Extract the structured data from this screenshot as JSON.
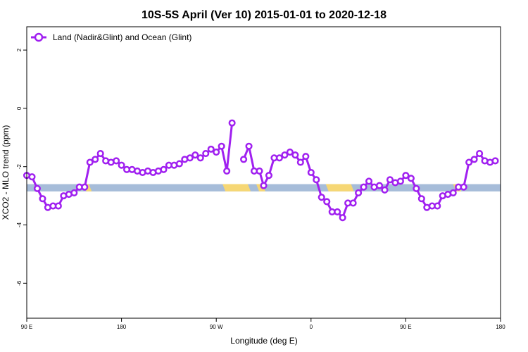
{
  "chart_data": {
    "type": "line",
    "title": "10S-5S April (Ver 10)   2015-01-01 to 2020-12-18",
    "xlabel": "Longitude (deg E)",
    "ylabel": "XCO2 - MLO trend (ppm)",
    "x_ticks": [
      {
        "value": 90,
        "label": "90 E"
      },
      {
        "value": 180,
        "label": "180"
      },
      {
        "value": 270,
        "label": "90 W"
      },
      {
        "value": 360,
        "label": "0"
      },
      {
        "value": 450,
        "label": "90 E"
      },
      {
        "value": 540,
        "label": "180"
      }
    ],
    "y_ticks": [
      {
        "value": 2,
        "label": "2"
      },
      {
        "value": 0,
        "label": "0"
      },
      {
        "value": -2,
        "label": "-2"
      },
      {
        "value": -4,
        "label": "-4"
      },
      {
        "value": -6,
        "label": "-6"
      }
    ],
    "xlim": [
      90,
      540
    ],
    "ylim": [
      -7.2,
      2.8
    ],
    "legend": {
      "position": "top-left"
    },
    "series": [
      {
        "name": "Land (Nadir&Glint) and Ocean (Glint)",
        "color": "#a020f0",
        "segments": [
          [
            [
              90,
              -2.3
            ],
            [
              95,
              -2.35
            ],
            [
              100,
              -2.75
            ],
            [
              105,
              -3.1
            ],
            [
              110,
              -3.4
            ],
            [
              115,
              -3.35
            ],
            [
              120,
              -3.35
            ],
            [
              125,
              -3.0
            ],
            [
              130,
              -2.95
            ],
            [
              135,
              -2.9
            ],
            [
              140,
              -2.7
            ],
            [
              145,
              -2.7
            ],
            [
              150,
              -1.85
            ],
            [
              155,
              -1.75
            ],
            [
              160,
              -1.55
            ],
            [
              165,
              -1.8
            ],
            [
              170,
              -1.85
            ],
            [
              175,
              -1.8
            ],
            [
              180,
              -1.95
            ],
            [
              185,
              -2.1
            ],
            [
              190,
              -2.1
            ],
            [
              195,
              -2.15
            ],
            [
              200,
              -2.2
            ],
            [
              205,
              -2.15
            ],
            [
              210,
              -2.2
            ],
            [
              215,
              -2.15
            ],
            [
              220,
              -2.1
            ],
            [
              225,
              -1.95
            ],
            [
              230,
              -1.95
            ],
            [
              235,
              -1.9
            ],
            [
              240,
              -1.75
            ],
            [
              245,
              -1.7
            ],
            [
              250,
              -1.6
            ],
            [
              255,
              -1.7
            ],
            [
              260,
              -1.55
            ],
            [
              265,
              -1.4
            ],
            [
              270,
              -1.5
            ],
            [
              275,
              -1.3
            ],
            [
              280,
              -2.15
            ],
            [
              285,
              -0.5
            ]
          ],
          [
            [
              296,
              -1.75
            ],
            [
              301,
              -1.3
            ],
            [
              306,
              -2.15
            ],
            [
              311,
              -2.15
            ],
            [
              315,
              -2.65
            ],
            [
              320,
              -2.3
            ],
            [
              325,
              -1.7
            ],
            [
              330,
              -1.7
            ],
            [
              335,
              -1.6
            ],
            [
              340,
              -1.5
            ],
            [
              345,
              -1.6
            ],
            [
              350,
              -1.85
            ],
            [
              355,
              -1.65
            ],
            [
              360,
              -2.2
            ],
            [
              365,
              -2.45
            ],
            [
              370,
              -3.05
            ],
            [
              375,
              -3.2
            ],
            [
              380,
              -3.55
            ],
            [
              385,
              -3.55
            ],
            [
              390,
              -3.75
            ],
            [
              395,
              -3.25
            ],
            [
              400,
              -3.25
            ],
            [
              405,
              -2.9
            ],
            [
              410,
              -2.7
            ],
            [
              415,
              -2.5
            ],
            [
              420,
              -2.7
            ],
            [
              425,
              -2.65
            ],
            [
              430,
              -2.8
            ],
            [
              435,
              -2.45
            ],
            [
              440,
              -2.55
            ],
            [
              445,
              -2.5
            ],
            [
              450,
              -2.3
            ],
            [
              455,
              -2.4
            ],
            [
              460,
              -2.75
            ],
            [
              465,
              -3.1
            ],
            [
              470,
              -3.4
            ],
            [
              475,
              -3.35
            ],
            [
              480,
              -3.35
            ],
            [
              485,
              -3.0
            ],
            [
              490,
              -2.95
            ],
            [
              495,
              -2.9
            ],
            [
              500,
              -2.7
            ],
            [
              505,
              -2.7
            ],
            [
              510,
              -1.85
            ],
            [
              515,
              -1.75
            ],
            [
              520,
              -1.55
            ],
            [
              525,
              -1.8
            ],
            [
              530,
              -1.85
            ],
            [
              535,
              -1.8
            ]
          ]
        ]
      }
    ],
    "surface_strip": {
      "y_range": [
        -2.6,
        -2.85
      ],
      "ocean_color": "#a6bcd9",
      "land_color": "#f6d775",
      "land_spans": [
        [
          144,
          149
        ],
        [
          276,
          300
        ],
        [
          308,
          314
        ],
        [
          374,
          398
        ],
        [
          495,
          500
        ]
      ]
    }
  }
}
